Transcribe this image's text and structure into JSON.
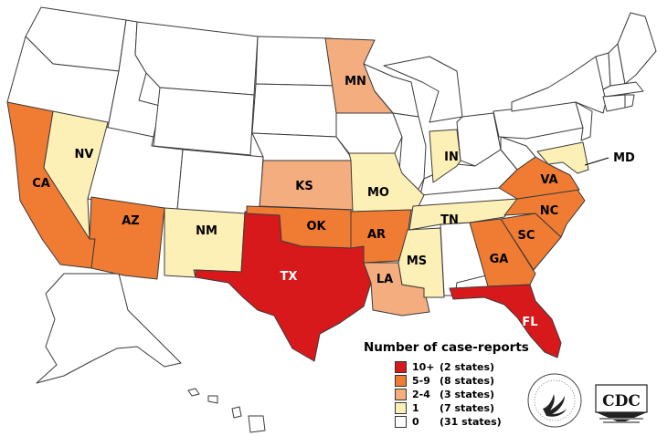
{
  "colors": {
    "c10plus": "#d7191c",
    "c5to9": "#f07b33",
    "c2to4": "#f4ad7e",
    "c1": "#fdf0b7",
    "c0": "#ffffff",
    "border": "#3a3a3a"
  },
  "states": {
    "CA": "CA",
    "NV": "NV",
    "AZ": "AZ",
    "NM": "NM",
    "TX": "TX",
    "OK": "OK",
    "KS": "KS",
    "MN": "MN",
    "MO": "MO",
    "AR": "AR",
    "LA": "LA",
    "MS": "MS",
    "TN": "TN",
    "IN": "IN",
    "GA": "GA",
    "SC": "SC",
    "NC": "NC",
    "VA": "VA",
    "MD": "MD",
    "FL": "FL"
  },
  "legend": {
    "title": "Number of case-reports",
    "items": [
      {
        "range": "10+",
        "count": "(2 states)",
        "color_key": "c10plus"
      },
      {
        "range": "5-9",
        "count": "(8 states)",
        "color_key": "c5to9"
      },
      {
        "range": "2-4",
        "count": "(3 states)",
        "color_key": "c2to4"
      },
      {
        "range": "1",
        "count": "(7 states)",
        "color_key": "c1"
      },
      {
        "range": "0",
        "count": "(31 states)",
        "color_key": "c0"
      }
    ]
  },
  "logos": {
    "hhs": "hhs-eagle-icon",
    "cdc": "CDC"
  }
}
